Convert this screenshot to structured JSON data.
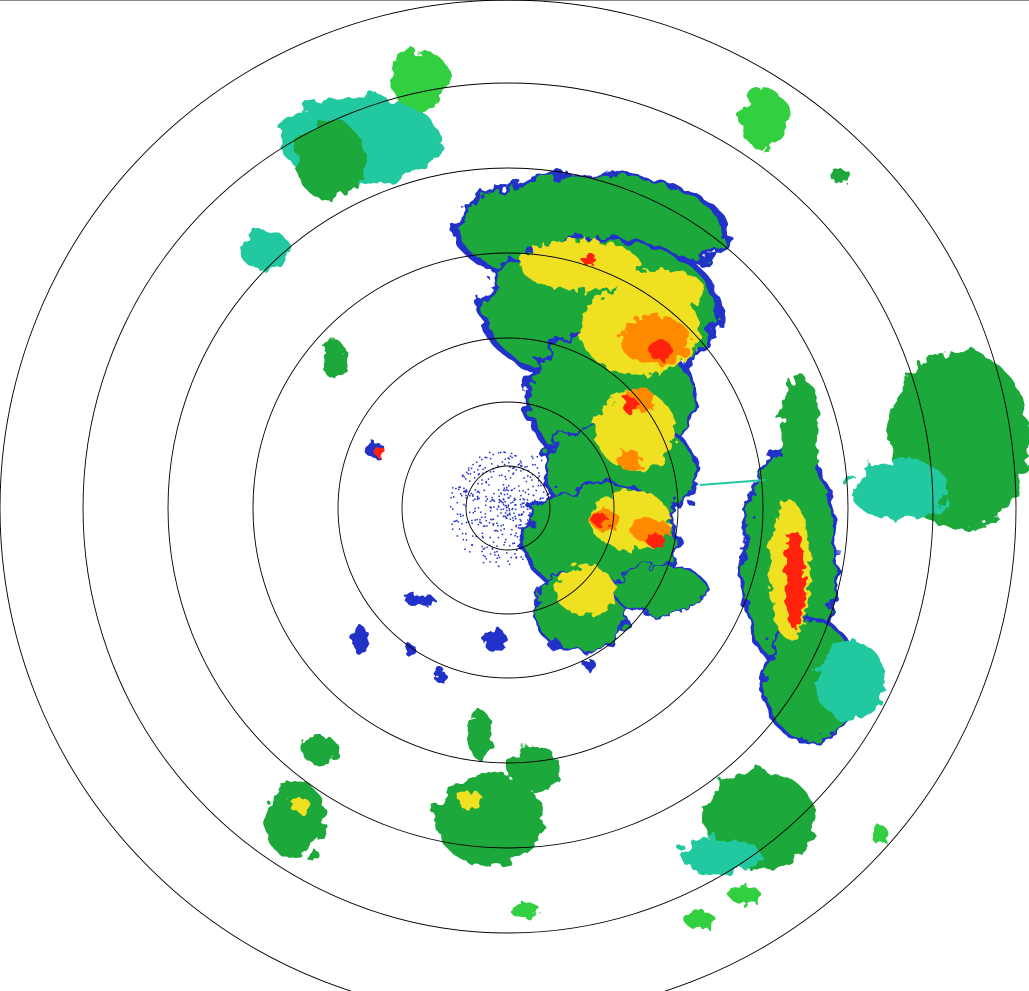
{
  "radar": {
    "range_rings": 7,
    "colors": {
      "weak": "#2030c8",
      "light": "#20c8a0",
      "moderate": "#1aa83a",
      "green_bright": "#30d040",
      "heavy": "#f0e020",
      "very_heavy": "#ff8a00",
      "intense": "#ff2010",
      "ring": "#000000"
    }
  }
}
